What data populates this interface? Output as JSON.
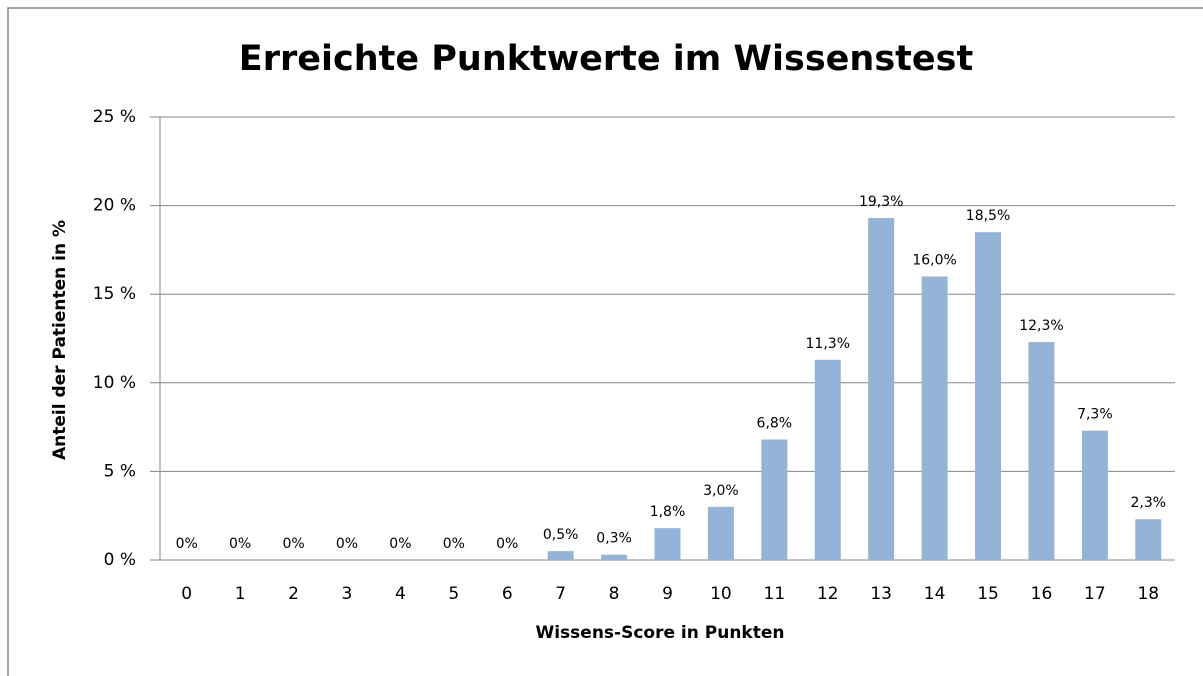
{
  "chart_data": {
    "type": "bar",
    "title": "Erreichte Punktwerte im Wissenstest",
    "x_label": "Wissens-Score in Punkten",
    "y_label": "Anteil der Patienten in %",
    "categories": [
      "0",
      "1",
      "2",
      "3",
      "4",
      "5",
      "6",
      "7",
      "8",
      "9",
      "10",
      "11",
      "12",
      "13",
      "14",
      "15",
      "16",
      "17",
      "18"
    ],
    "values": [
      0,
      0,
      0,
      0,
      0,
      0,
      0,
      0.5,
      0.3,
      1.8,
      3.0,
      6.8,
      11.3,
      19.3,
      16.0,
      18.5,
      12.3,
      7.3,
      2.3
    ],
    "value_labels": [
      "0%",
      "0%",
      "0%",
      "0%",
      "0%",
      "0%",
      "0%",
      "0,5%",
      "0,3%",
      "1,8%",
      "3,0%",
      "6,8%",
      "11,3%",
      "19,3%",
      "16,0%",
      "18,5%",
      "12,3%",
      "7,3%",
      "2,3%"
    ],
    "color": "#95b3d7",
    "ylim": [
      0,
      25
    ],
    "yticks": [
      {
        "value": 0,
        "label": "0 %"
      },
      {
        "value": 5,
        "label": "5 %"
      },
      {
        "value": 10,
        "label": "10 %"
      },
      {
        "value": 15,
        "label": "15 %"
      },
      {
        "value": 20,
        "label": "20 %"
      },
      {
        "value": 25,
        "label": "25 %"
      }
    ],
    "grid": true
  }
}
